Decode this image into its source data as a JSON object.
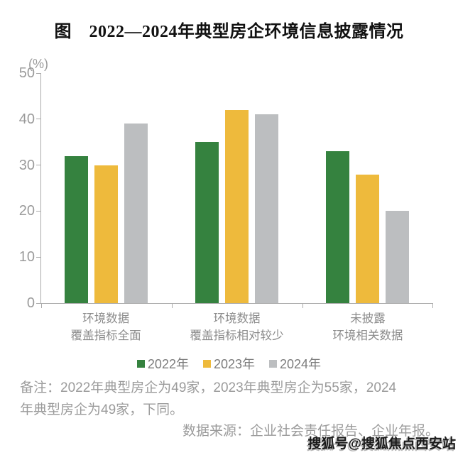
{
  "title": "图　2022—2024年典型房企环境信息披露情况",
  "y_axis": {
    "unit": "(%)",
    "ticks": [
      0,
      10,
      20,
      30,
      40,
      50
    ]
  },
  "chart_data": {
    "type": "bar",
    "title": "图 2022—2024年典型房企环境信息披露情况",
    "categories": [
      [
        "环境数据",
        "覆盖指标全面"
      ],
      [
        "环境数据",
        "覆盖指标相对较少"
      ],
      [
        "未披露",
        "环境相关数据"
      ]
    ],
    "series": [
      {
        "name": "2022年",
        "color": "#35823f",
        "values": [
          32,
          35,
          33
        ]
      },
      {
        "name": "2023年",
        "color": "#eeba3c",
        "values": [
          30,
          42,
          28
        ]
      },
      {
        "name": "2024年",
        "color": "#bcbec0",
        "values": [
          39,
          41,
          20
        ]
      }
    ],
    "ylabel": "(%)",
    "ylim": [
      0,
      50
    ],
    "grid": false,
    "legend_position": "bottom",
    "axis_color": "#ababab"
  },
  "notes": {
    "line1": "备注：2022年典型房企为49家，2023年典型房企为55家，2024",
    "line2": "年典型房企为49家，下同。"
  },
  "source": "数据来源：企业社会责任报告、企业年报。",
  "watermark": "搜狐号@搜狐焦点西安站",
  "colors": {
    "series_2022": "#35823f",
    "series_2023": "#eeba3c",
    "series_2024": "#bcbec0",
    "axis": "#ababab",
    "label_text": "#8c8c8c",
    "note_text": "#9b9b9b",
    "title_text": "#111111"
  }
}
